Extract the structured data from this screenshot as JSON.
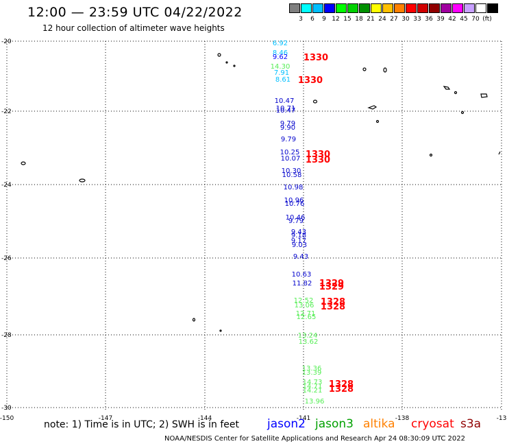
{
  "title": "12:00 — 23:59 UTC 04/22/2022",
  "subtitle": "12 hour collection of altimeter wave heights",
  "colorbar": {
    "colors": [
      "#7f7f7f",
      "#00ffff",
      "#00bfff",
      "#0000ff",
      "#00ff00",
      "#00d000",
      "#009000",
      "#ffff00",
      "#ffc000",
      "#ff8000",
      "#ff0000",
      "#d00000",
      "#900000",
      "#a000a0",
      "#ff00ff",
      "#c8a0ff",
      "#ffffff",
      "#000000"
    ],
    "labels": [
      "3",
      "6",
      "9",
      "12",
      "15",
      "18",
      "21",
      "24",
      "27",
      "30",
      "33",
      "36",
      "39",
      "42",
      "45",
      "70",
      "(ft)"
    ]
  },
  "axes": {
    "lat_labels": [
      "-20",
      "-22",
      "-24",
      "-26",
      "-28",
      "-30"
    ],
    "lon_labels": [
      "-150",
      "-147",
      "-144",
      "-141",
      "-138",
      "-13"
    ]
  },
  "measurements": [
    {
      "value": "6.92",
      "color": "#00bfff"
    },
    {
      "value": "8.46",
      "color": "#00bfff"
    },
    {
      "value": "9.62",
      "color": "#0000ff"
    },
    {
      "value": "14.30",
      "color": "#55ee55"
    },
    {
      "value": "7.91",
      "color": "#00bfff"
    },
    {
      "value": "8.61",
      "color": "#00bfff"
    },
    {
      "value": "10.47",
      "color": "#0000cc"
    },
    {
      "value": "10.71",
      "color": "#0000cc"
    },
    {
      "value": "10.47",
      "color": "#0000cc"
    },
    {
      "value": "9.79",
      "color": "#0000cc"
    },
    {
      "value": "9.90",
      "color": "#0000cc"
    },
    {
      "value": "9.79",
      "color": "#0000cc"
    },
    {
      "value": "10.25",
      "color": "#0000cc"
    },
    {
      "value": "10.07",
      "color": "#0000cc"
    },
    {
      "value": "10.30",
      "color": "#0000cc"
    },
    {
      "value": "10.58",
      "color": "#0000cc"
    },
    {
      "value": "10.98",
      "color": "#0000cc"
    },
    {
      "value": "10.96",
      "color": "#0000cc"
    },
    {
      "value": "10.76",
      "color": "#0000cc"
    },
    {
      "value": "10.46",
      "color": "#0000cc"
    },
    {
      "value": "9.79",
      "color": "#0000cc"
    },
    {
      "value": "9.43",
      "color": "#0000cc"
    },
    {
      "value": "9.18",
      "color": "#0000cc"
    },
    {
      "value": "9.17",
      "color": "#0000cc"
    },
    {
      "value": "9.03",
      "color": "#0000cc"
    },
    {
      "value": "9.43",
      "color": "#0000cc"
    },
    {
      "value": "10.63",
      "color": "#0000cc"
    },
    {
      "value": "11.82",
      "color": "#0000cc"
    },
    {
      "value": "12.52",
      "color": "#55ee55"
    },
    {
      "value": "13.06",
      "color": "#55ee55"
    },
    {
      "value": "12.71",
      "color": "#55ee55"
    },
    {
      "value": "12.65",
      "color": "#55ee55"
    },
    {
      "value": "13.24",
      "color": "#55ee55"
    },
    {
      "value": "13.62",
      "color": "#55ee55"
    },
    {
      "value": "13.36",
      "color": "#55ee55"
    },
    {
      "value": "13.39",
      "color": "#55ee55"
    },
    {
      "value": "14.73",
      "color": "#55ee55"
    },
    {
      "value": "14.71",
      "color": "#55ee55"
    },
    {
      "value": "14.21",
      "color": "#55ee55"
    },
    {
      "value": "13.96",
      "color": "#55ee55"
    }
  ],
  "time_labels": [
    "1330",
    "1330",
    "1330",
    "1330",
    "1329",
    "1329",
    "1328",
    "1328",
    "1328",
    "1328"
  ],
  "footer": {
    "note": "note: 1) Time is in UTC; 2) SWH is in feet",
    "missions": [
      {
        "name": "jason2",
        "color": "#0000ff"
      },
      {
        "name": "jason3",
        "color": "#00a000"
      },
      {
        "name": "altika",
        "color": "#ff8000"
      },
      {
        "name": "cryosat",
        "color": "#ff0000"
      },
      {
        "name": "s3a",
        "color": "#900000"
      }
    ],
    "credit": "NOAA/NESDIS Center for Satellite Applications and Research   Apr 24 08:30:09 UTC 2022"
  }
}
